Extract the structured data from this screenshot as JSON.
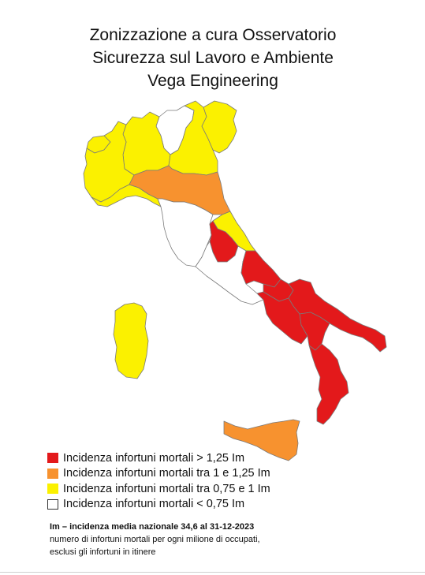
{
  "title_lines": [
    "Zonizzazione a cura Osservatorio",
    "Sicurezza sul Lavoro e Ambiente",
    "Vega Engineering"
  ],
  "colors": {
    "red": "#e3191b",
    "orange": "#f7922f",
    "yellow": "#fbf100",
    "white": "#ffffff",
    "border": "#7a7a7a"
  },
  "regions": [
    {
      "name": "Valle d'Aosta",
      "zone": "yellow"
    },
    {
      "name": "Piemonte",
      "zone": "yellow"
    },
    {
      "name": "Lombardia",
      "zone": "yellow"
    },
    {
      "name": "Trentino-Alto Adige",
      "zone": "white"
    },
    {
      "name": "Veneto",
      "zone": "yellow"
    },
    {
      "name": "Friuli-Venezia Giulia",
      "zone": "yellow"
    },
    {
      "name": "Liguria",
      "zone": "yellow"
    },
    {
      "name": "Emilia-Romagna",
      "zone": "orange"
    },
    {
      "name": "Toscana",
      "zone": "white"
    },
    {
      "name": "Umbria",
      "zone": "red"
    },
    {
      "name": "Marche",
      "zone": "yellow"
    },
    {
      "name": "Lazio",
      "zone": "white"
    },
    {
      "name": "Abruzzo",
      "zone": "red"
    },
    {
      "name": "Molise",
      "zone": "red"
    },
    {
      "name": "Campania",
      "zone": "red"
    },
    {
      "name": "Puglia",
      "zone": "red"
    },
    {
      "name": "Basilicata",
      "zone": "red"
    },
    {
      "name": "Calabria",
      "zone": "red"
    },
    {
      "name": "Sicilia",
      "zone": "orange"
    },
    {
      "name": "Sardegna",
      "zone": "yellow"
    }
  ],
  "legend": [
    {
      "color": "#e3191b",
      "label": "Incidenza infortuni mortali > 1,25 Im"
    },
    {
      "color": "#f7922f",
      "label": "Incidenza infortuni mortali tra 1 e 1,25 Im"
    },
    {
      "color": "#fbf100",
      "label": "Incidenza infortuni mortali tra 0,75 e 1 Im"
    },
    {
      "color": "#ffffff",
      "label": "Incidenza infortuni mortali < 0,75 Im"
    }
  ],
  "note": {
    "headline": "Im – incidenza media nazionale 34,6 al 31-12-2023",
    "line1": "numero di infortuni mortali per ogni milione di occupati,",
    "line2": "esclusi gli infortuni in itinere"
  }
}
